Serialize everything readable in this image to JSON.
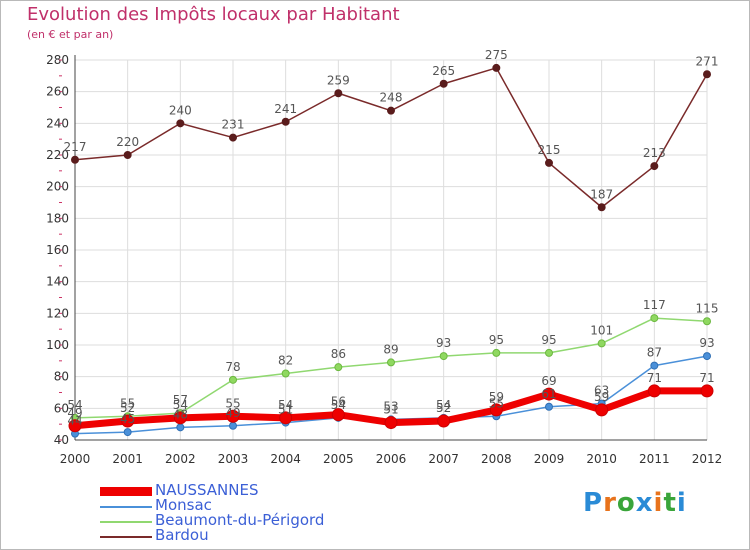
{
  "header": {
    "title": "Evolution des Impôts locaux par Habitant",
    "subtitle": "(en € et par an)"
  },
  "logo": {
    "text": "Proxiti",
    "letter_colors": [
      "#2a8bd6",
      "#e8731c",
      "#3aa53a",
      "#2a8bd6",
      "#e8731c",
      "#3aa53a",
      "#2a8bd6"
    ]
  },
  "chart_data": {
    "type": "line",
    "title": "Evolution des Impôts locaux par Habitant",
    "subtitle": "(en € et par an)",
    "xlabel": "",
    "ylabel": "",
    "x": [
      "2000",
      "2001",
      "2002",
      "2003",
      "2004",
      "2005",
      "2006",
      "2007",
      "2008",
      "2009",
      "2010",
      "2011",
      "2012"
    ],
    "ylim": [
      40,
      280
    ],
    "yticks": [
      "40",
      "60",
      "80",
      "100",
      "120",
      "140",
      "160",
      "180",
      "200",
      "220",
      "240",
      "260",
      "280"
    ],
    "grid": true,
    "legend_position": "bottom-left",
    "series": [
      {
        "name": "Bardou",
        "color": "#7a2a2a",
        "values": [
          217,
          220,
          240,
          231,
          241,
          259,
          248,
          265,
          275,
          215,
          187,
          213,
          271
        ],
        "labels": [
          "217",
          "220",
          "240",
          "231",
          "241",
          "259",
          "248",
          "265",
          "275",
          "215",
          "187",
          "213",
          "271"
        ]
      },
      {
        "name": "Beaumont-du-Périgord",
        "color": "#90d870",
        "values": [
          54,
          55,
          57,
          78,
          82,
          86,
          89,
          93,
          95,
          95,
          101,
          117,
          115
        ],
        "labels": [
          "54",
          "55",
          "57",
          "78",
          "82",
          "86",
          "89",
          "93",
          "95",
          "95",
          "101",
          "117",
          "115"
        ]
      },
      {
        "name": "Monsac",
        "color": "#4a90d9",
        "values": [
          44,
          45,
          48,
          49,
          51,
          54,
          53,
          54,
          55,
          61,
          63,
          87,
          93
        ],
        "labels": [
          "44",
          "45",
          "48",
          "49",
          "51",
          "54",
          "53",
          "54",
          "55",
          "61",
          "63",
          "87",
          "93"
        ]
      },
      {
        "name": "NAUSSANNES",
        "color": "#ee0000",
        "values": [
          49,
          52,
          54,
          55,
          54,
          56,
          51,
          52,
          59,
          69,
          59,
          71,
          71
        ],
        "labels": [
          "49",
          "52",
          "54",
          "55",
          "54",
          "56",
          "51",
          "52",
          "59",
          "69",
          "59",
          "71",
          "71"
        ]
      }
    ],
    "legend": [
      "NAUSSANNES",
      "Monsac",
      "Beaumont-du-Périgord",
      "Bardou"
    ]
  }
}
